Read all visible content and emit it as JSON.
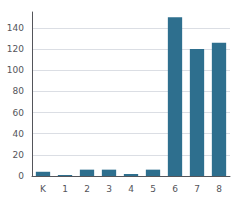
{
  "chart_data": {
    "type": "bar",
    "categories": [
      "K",
      "1",
      "2",
      "3",
      "4",
      "5",
      "6",
      "7",
      "8"
    ],
    "values": [
      4,
      1,
      6,
      6,
      2,
      6,
      150,
      120,
      126
    ],
    "color": "#2e6f8e",
    "ylim": [
      0,
      155
    ],
    "yticks": [
      0,
      20,
      40,
      60,
      80,
      100,
      120,
      140
    ],
    "grid": true
  }
}
